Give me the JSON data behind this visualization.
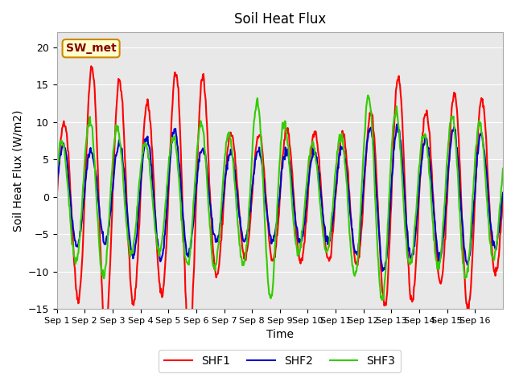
{
  "title": "Soil Heat Flux",
  "xlabel": "Time",
  "ylabel": "Soil Heat Flux (W/m2)",
  "ylim": [
    -15,
    22
  ],
  "yticks": [
    -15,
    -10,
    -5,
    0,
    5,
    10,
    15,
    20
  ],
  "xtick_labels": [
    "Sep 1",
    "Sep 2",
    "Sep 3",
    "Sep 4",
    "Sep 5",
    "Sep 6",
    "Sep 7",
    "Sep 8",
    "Sep 9",
    "Sep 10",
    "Sep 11",
    "Sep 12",
    "Sep 13",
    "Sep 14",
    "Sep 15",
    "Sep 16"
  ],
  "shf1_color": "#FF0000",
  "shf2_color": "#0000CC",
  "shf3_color": "#33CC00",
  "linewidth": 1.5,
  "bg_color": "#E8E8E8",
  "legend_label1": "SHF1",
  "legend_label2": "SHF2",
  "legend_label3": "SHF3",
  "annotation_text": "SW_met",
  "annotation_bg": "#FFFFCC",
  "annotation_border": "#CC8800",
  "n_days": 16,
  "pts_per_day": 48
}
